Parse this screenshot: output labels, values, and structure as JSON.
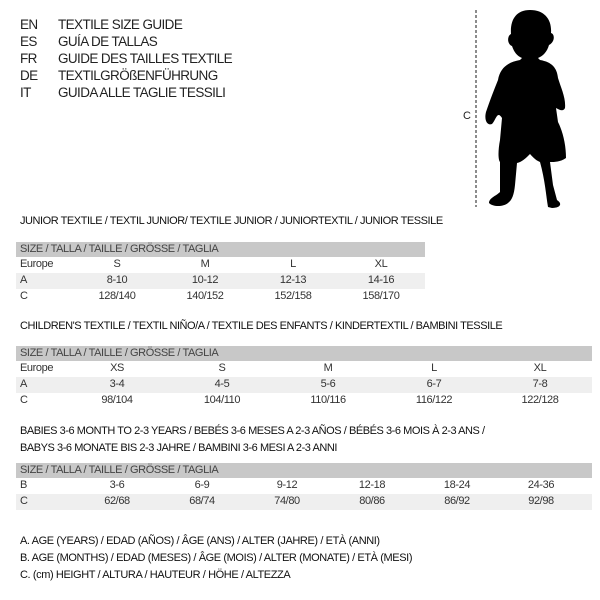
{
  "header": {
    "languages": [
      {
        "code": "EN",
        "text": "TEXTILE SIZE GUIDE"
      },
      {
        "code": "ES",
        "text": "GUÍA DE TALLAS"
      },
      {
        "code": "FR",
        "text": "GUIDE DES TAILLES TEXTILE"
      },
      {
        "code": "DE",
        "text": "TEXTILGRÖßENFÜHRUNG"
      },
      {
        "code": "IT",
        "text": "GUIDA ALLE TAGLIE TESSILI"
      }
    ]
  },
  "figure": {
    "measure_label": "C",
    "icon": "baby-silhouette"
  },
  "junior": {
    "title": "JUNIOR TEXTILE / TEXTIL JUNIOR/ TEXTILE JUNIOR / JUNIORTEXTIL / JUNIOR TESSILE",
    "header": "SIZE / TALLA / TAILLE / GRÖSSE / TAGLIA",
    "rows": [
      {
        "label": "Europe",
        "values": [
          "S",
          "M",
          "L",
          "XL"
        ]
      },
      {
        "label": "A",
        "values": [
          "8-10",
          "10-12",
          "12-13",
          "14-16"
        ]
      },
      {
        "label": "C",
        "values": [
          "128/140",
          "140/152",
          "152/158",
          "158/170"
        ]
      }
    ]
  },
  "children": {
    "title": "CHILDREN'S TEXTILE / TEXTIL NIÑO/A / TEXTILE DES ENFANTS / KINDERTEXTIL / BAMBINI TESSILE",
    "header": "SIZE / TALLA / TAILLE / GRÖSSE / TAGLIA",
    "rows": [
      {
        "label": "Europe",
        "values": [
          "XS",
          "S",
          "M",
          "L",
          "XL"
        ]
      },
      {
        "label": "A",
        "values": [
          "3-4",
          "4-5",
          "5-6",
          "6-7",
          "7-8"
        ]
      },
      {
        "label": "C",
        "values": [
          "98/104",
          "104/110",
          "110/116",
          "116/122",
          "122/128"
        ]
      }
    ]
  },
  "babies": {
    "title_line1": "BABIES 3-6 MONTH TO 2-3 YEARS / BEBÉS 3-6 MESES A 2-3 AÑOS / BÉBÉS 3-6 MOIS À 2-3 ANS /",
    "title_line2": "BABYS 3-6 MONATE BIS 2-3 JAHRE / BAMBINI 3-6 MESI A 2-3 ANNI",
    "header": "SIZE / TALLA / TAILLE / GRÖSSE / TAGLIA",
    "rows": [
      {
        "label": "B",
        "values": [
          "3-6",
          "6-9",
          "9-12",
          "12-18",
          "18-24",
          "24-36"
        ]
      },
      {
        "label": "C",
        "values": [
          "62/68",
          "68/74",
          "74/80",
          "80/86",
          "86/92",
          "92/98"
        ]
      }
    ]
  },
  "legend": [
    "A. AGE (YEARS) / EDAD (AÑOS) / ÂGE (ANS) / ALTER (JAHRE) / ETÀ (ANNI)",
    "B. AGE (MONTHS) / EDAD (MESES) / ÂGE (MOIS) / ALTER (MONATE) / ETÀ (MESI)",
    "C. (cm) HEIGHT / ALTURA / HAUTEUR / HÖHE / ALTEZZA"
  ]
}
